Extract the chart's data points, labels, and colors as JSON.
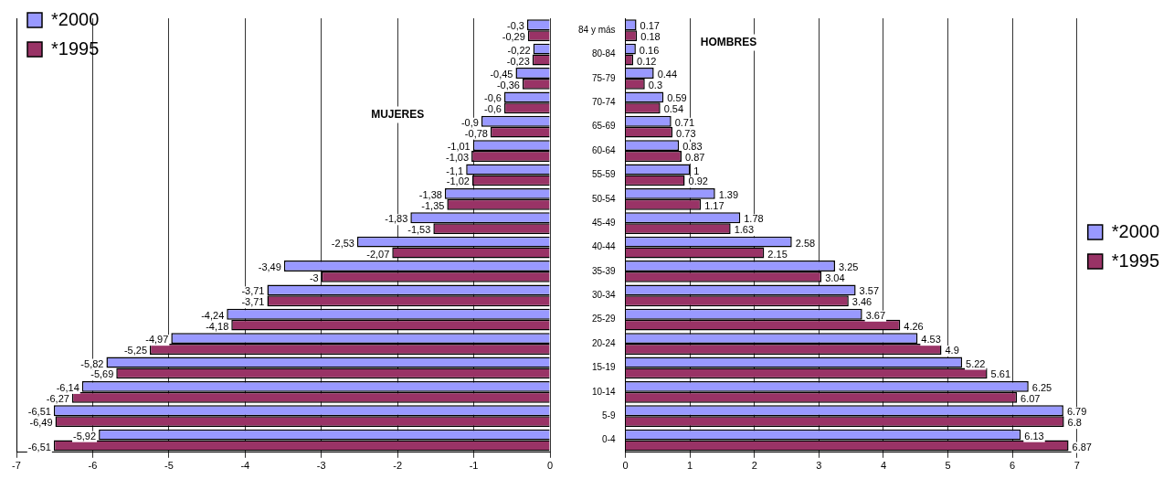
{
  "chart_data": [
    {
      "type": "bar",
      "orientation": "horizontal",
      "categories": [
        null,
        null,
        null,
        null,
        null,
        null,
        null,
        null,
        null,
        null,
        null,
        null,
        null,
        null,
        null,
        null,
        null,
        null
      ],
      "series": [
        {
          "name": "*2000",
          "color": "#9999ff",
          "values": [
            -0.3,
            -0.22,
            -0.45,
            -0.6,
            -0.9,
            -1.01,
            -1.1,
            -1.38,
            -1.83,
            -2.53,
            -3.49,
            -3.71,
            -4.24,
            -4.97,
            -5.82,
            -6.14,
            -6.51,
            -5.92
          ],
          "value_labels": [
            "-0,3",
            "-0,22",
            "-0,45",
            "-0,6",
            "-0,9",
            "-1,01",
            "-1,1",
            "-1,38",
            "-1,83",
            "-2,53",
            "-3,49",
            "-3,71",
            "-4,24",
            "-4,97",
            "-5,82",
            "-6,14",
            "-6,51",
            "-5,92"
          ]
        },
        {
          "name": "*1995",
          "color": "#993366",
          "values": [
            -0.29,
            -0.23,
            -0.36,
            -0.6,
            -0.78,
            -1.03,
            -1.02,
            -1.35,
            -1.53,
            -2.07,
            -3,
            -3.71,
            -4.18,
            -5.25,
            -5.69,
            -6.27,
            -6.49,
            -6.51
          ],
          "value_labels": [
            "-0,29",
            "-0,23",
            "-0,36",
            "-0,6",
            "-0,78",
            "-1,03",
            "-1,02",
            "-1,35",
            "-1,53",
            "-2,07",
            "-3",
            "-3,71",
            "-4,18",
            "-5,25",
            "-5,69",
            "-6,27",
            "-6,49",
            "-6,51"
          ]
        }
      ],
      "xlim": [
        -7,
        0
      ],
      "xticks": [
        -7,
        -6,
        -5,
        -4,
        -3,
        -2,
        -1,
        0
      ],
      "grid": "x",
      "legend": "top left",
      "tick_labels": "x",
      "annotations": [
        "MUJERES"
      ]
    },
    {
      "type": "bar",
      "orientation": "horizontal",
      "categories": [
        "84 y más",
        "80-84",
        "75-79",
        "70-74",
        "65-69",
        "60-64",
        "55-59",
        "50-54",
        "45-49",
        "40-44",
        "35-39",
        "30-34",
        "25-29",
        "20-24",
        "15-19",
        "10-14",
        "5-9",
        "0-4"
      ],
      "series": [
        {
          "name": "*2000",
          "color": "#9999ff",
          "values": [
            0.17,
            0.16,
            0.44,
            0.59,
            0.71,
            0.83,
            1,
            1.39,
            1.78,
            2.58,
            3.25,
            3.57,
            3.67,
            4.53,
            5.22,
            6.25,
            6.79,
            6.13
          ]
        },
        {
          "name": "*1995",
          "color": "#993366",
          "values": [
            0.18,
            0.12,
            0.3,
            0.54,
            0.73,
            0.87,
            0.92,
            1.17,
            1.63,
            2.15,
            3.04,
            3.46,
            4.26,
            4.9,
            5.61,
            6.07,
            6.8,
            6.87
          ]
        }
      ],
      "xlim": [
        0,
        7
      ],
      "xticks": [
        0,
        1,
        2,
        3,
        4,
        5,
        6,
        7
      ],
      "grid": "x",
      "legend": "right",
      "data_labels": true,
      "annotations": [
        "HOMBRES"
      ]
    }
  ]
}
